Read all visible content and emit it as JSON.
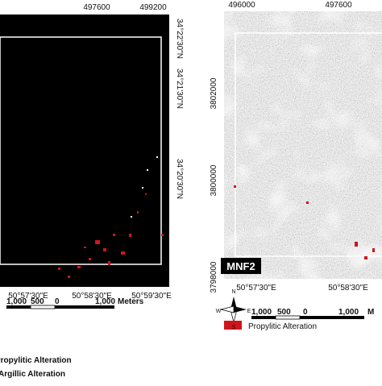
{
  "left_map": {
    "top_labels": [
      "497600",
      "499200"
    ],
    "right_labels": [
      "34°22'30\"N",
      "34°21'30\"N",
      "34°20'30\"N"
    ],
    "bottom_labels": [
      "50°57'30\"E",
      "50°58'30\"E",
      "50°59'30\"E"
    ],
    "scale_labels": [
      "1,000",
      "500",
      "0",
      "1,000",
      "Meters"
    ],
    "legend": [
      "Propylitic Alteration",
      "Argillic Alteration"
    ]
  },
  "right_map": {
    "top_labels": [
      "496000",
      "497600"
    ],
    "left_labels": [
      "3802000",
      "3800000",
      "3798000"
    ],
    "bottom_labels": [
      "50°57'30\"E",
      "50°58'30\"E"
    ],
    "panel_label": "MNF2",
    "north_labels": [
      "N",
      "S",
      "E",
      "W"
    ],
    "scale_labels": [
      "1,000",
      "500",
      "0",
      "1,000",
      "M"
    ],
    "legend": [
      "Propylitic Alteration"
    ]
  }
}
